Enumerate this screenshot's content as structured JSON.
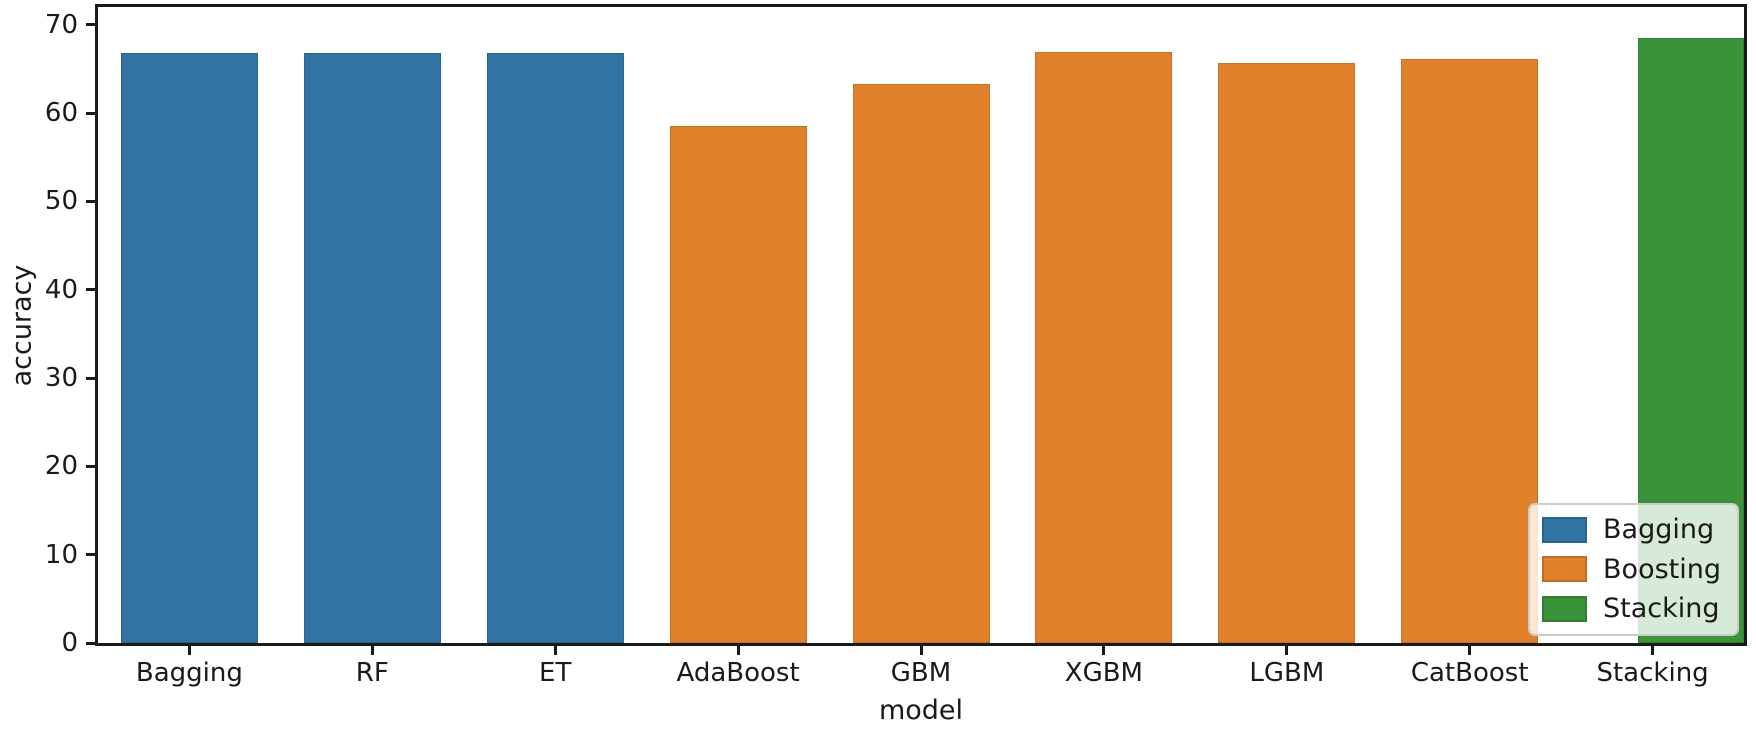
{
  "figure": {
    "background": "#ffffff",
    "spine_color": "#1a1a1a",
    "text_color": "#1a1a1a"
  },
  "chart_data": {
    "type": "bar",
    "title": "",
    "xlabel": "model",
    "ylabel": "accuracy",
    "ylim": [
      0,
      72
    ],
    "yticks": [
      0,
      10,
      20,
      30,
      40,
      50,
      60,
      70
    ],
    "grid": false,
    "categories": [
      "Bagging",
      "RF",
      "ET",
      "AdaBoost",
      "GBM",
      "XGBM",
      "LGBM",
      "CatBoost",
      "Stacking"
    ],
    "values": [
      66.8,
      66.8,
      66.8,
      58.5,
      63.3,
      66.9,
      65.7,
      66.1,
      68.5
    ],
    "groups": [
      "Bagging",
      "Bagging",
      "Bagging",
      "Boosting",
      "Boosting",
      "Boosting",
      "Boosting",
      "Boosting",
      "Stacking"
    ],
    "palette": {
      "Bagging": "#3274a1",
      "Boosting": "#e1812c",
      "Stacking": "#3a923a"
    },
    "legend": {
      "position": "lower-right",
      "entries": [
        {
          "label": "Bagging",
          "color": "#3274a1"
        },
        {
          "label": "Boosting",
          "color": "#e1812c"
        },
        {
          "label": "Stacking",
          "color": "#3a923a"
        }
      ]
    }
  }
}
